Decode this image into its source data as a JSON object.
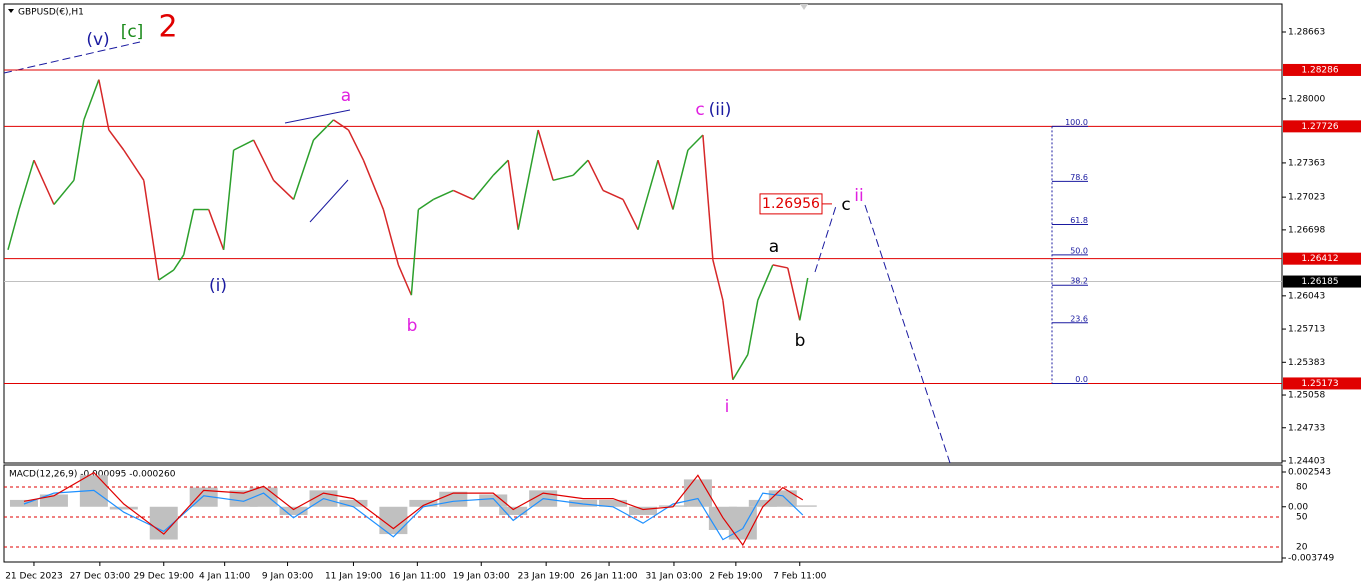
{
  "chart_data": [
    {
      "type": "price",
      "title": "GBPUSD(€),H1",
      "x": [
        0.4,
        1.5,
        3,
        5,
        7,
        8,
        9.5,
        10.5,
        12,
        14,
        15.5,
        17,
        18,
        19,
        20.5,
        22,
        23,
        25,
        27,
        29,
        31,
        33,
        34.5,
        36,
        38,
        39.5,
        40.8,
        41.5,
        43,
        45,
        47,
        49,
        50.5,
        51.5,
        53.5,
        55,
        57,
        58.5,
        60,
        62,
        63.5,
        65.5,
        67,
        68.5,
        70,
        71,
        72,
        73,
        74.5,
        75.5,
        77,
        78.5,
        79.7,
        80.5
      ],
      "series": [
        {
          "color_up": "#2ca02c",
          "color_down": "#d62728",
          "values": [
            1.265,
            1.269,
            1.2739,
            1.2695,
            1.2719,
            1.2779,
            1.2819,
            1.2769,
            1.2749,
            1.2719,
            1.262,
            1.263,
            1.2645,
            1.269,
            1.269,
            1.265,
            1.2749,
            1.2759,
            1.2719,
            1.27,
            1.2759,
            1.2779,
            1.2769,
            1.2739,
            1.269,
            1.2635,
            1.2605,
            1.269,
            1.27,
            1.2709,
            1.27,
            1.2724,
            1.2739,
            1.267,
            1.2769,
            1.2719,
            1.2724,
            1.2739,
            1.2709,
            1.27,
            1.267,
            1.2739,
            1.269,
            1.2749,
            1.2764,
            1.264,
            1.26,
            1.2521,
            1.2546,
            1.26,
            1.2635,
            1.2632,
            1.258,
            1.2622
          ]
        }
      ],
      "xlim": [
        0,
        128
      ],
      "ylim": [
        1.24383,
        1.28941
      ],
      "xticks": [
        {
          "value": 3,
          "label": "21 Dec 2023"
        },
        {
          "value": 9.6,
          "label": "27 Dec 03:00"
        },
        {
          "value": 16,
          "label": "29 Dec 19:00"
        },
        {
          "value": 22.1,
          "label": "4 Jan 11:00"
        },
        {
          "value": 28.4,
          "label": "9 Jan 03:00"
        },
        {
          "value": 35,
          "label": "11 Jan 19:00"
        },
        {
          "value": 41.4,
          "label": "16 Jan 11:00"
        },
        {
          "value": 47.8,
          "label": "19 Jan 03:00"
        },
        {
          "value": 54.3,
          "label": "23 Jan 19:00"
        },
        {
          "value": 60.6,
          "label": "26 Jan 11:00"
        },
        {
          "value": 67.1,
          "label": "31 Jan 03:00"
        },
        {
          "value": 73.3,
          "label": "2 Feb 19:00"
        },
        {
          "value": 79.7,
          "label": "7 Feb 11:00"
        }
      ],
      "yticks": [
        1.28663,
        {
          "value": 1.28,
          "label": "1.28000"
        },
        1.27363,
        1.27023,
        1.26698,
        1.26043,
        1.25713,
        1.25383,
        1.25058,
        1.24733,
        1.24403
      ],
      "hlines": [
        1.28286,
        1.27726,
        1.26412,
        1.25173
      ],
      "hline_color": "#e00000",
      "current_price": 1.26185,
      "target": 1.26956,
      "fib_levels": [
        {
          "value": 100,
          "label": "100.0"
        },
        78.6,
        61.8,
        {
          "value": 50,
          "label": "50.0"
        },
        38.2,
        23.6,
        {
          "value": 0,
          "label": "0.0"
        }
      ],
      "wave_labels": [
        "(v)",
        "[c]",
        "2",
        "a",
        "(i)",
        "b",
        "c",
        "(ii)",
        "i",
        "a",
        "b",
        "c",
        "ii"
      ]
    },
    {
      "type": "macd",
      "title": "MACD(12,26,9) -0.000095 -0.000260",
      "x": [
        2,
        5,
        9,
        12,
        16,
        20,
        24,
        26,
        29,
        32,
        35,
        39,
        42,
        45,
        49,
        51,
        54,
        58,
        61,
        64,
        67,
        69.5,
        72,
        74,
        76,
        78,
        80
      ],
      "series": [
        {
          "name": "histogram",
          "color": "#c0c0c0",
          "values": [
            0.0005,
            0.0009,
            0.0023,
            -0.0002,
            -0.0024,
            0.0014,
            0.0012,
            0.0014,
            -0.0006,
            0.0012,
            0.0005,
            -0.002,
            0.0005,
            0.0011,
            0.0009,
            -0.0006,
            0.0012,
            0.0005,
            0.0005,
            -0.0006,
            0.0001,
            0.002,
            -0.0017,
            -0.0024,
            0.0005,
            0.0012,
            0.0001
          ]
        },
        {
          "name": "macd",
          "color": "#1e90ff",
          "values": [
            0.0002,
            0.001,
            0.0012,
            -0.0004,
            -0.0018,
            0.0008,
            0.0004,
            0.001,
            -0.0008,
            0.0006,
            0.0,
            -0.0022,
            0.0,
            0.0004,
            0.0006,
            -0.001,
            0.0006,
            0.0002,
            0.0,
            -0.0012,
            0.0002,
            0.0006,
            -0.0024,
            -0.0016,
            0.001,
            0.0008,
            -0.0006
          ]
        },
        {
          "name": "signal",
          "color": "#e00000",
          "values": [
            0.0004,
            0.0008,
            0.0025,
            0.0002,
            -0.002,
            0.0012,
            0.001,
            0.0015,
            -0.0002,
            0.001,
            0.0006,
            -0.0016,
            0.0001,
            0.001,
            0.001,
            -0.0002,
            0.001,
            0.0006,
            0.0006,
            -0.0002,
            0.0,
            0.0023,
            -0.0008,
            -0.0028,
            0.0,
            0.0014,
            0.0005
          ]
        }
      ],
      "ylim": [
        -0.003895,
        0.003055
      ],
      "yticks": [
        0.002543,
        {
          "value": 0,
          "label": "0.00"
        },
        -0.003749
      ],
      "y2lim": [
        7,
        102
      ],
      "y2ticks": [
        80,
        50,
        20
      ]
    }
  ]
}
